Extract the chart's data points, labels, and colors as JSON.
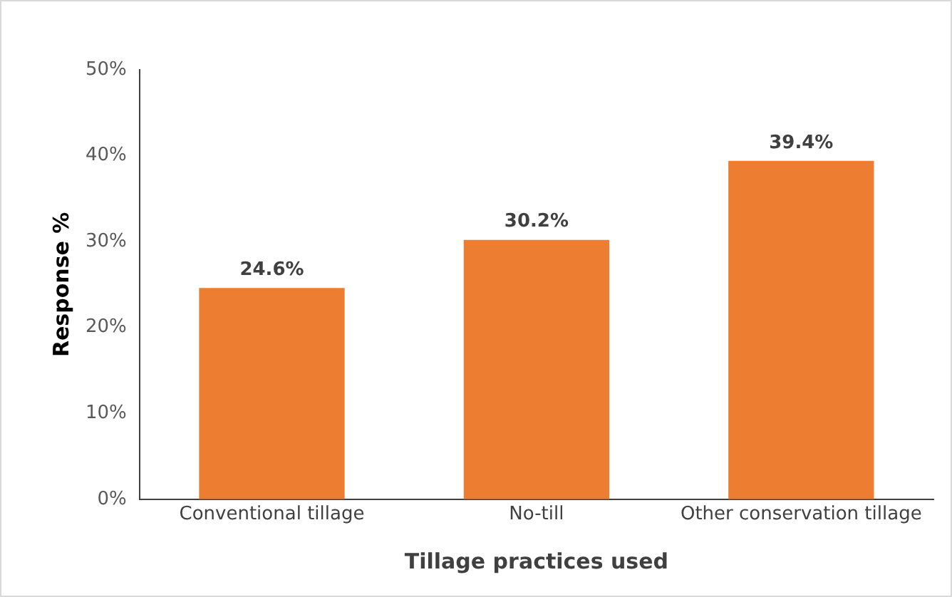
{
  "chart_data": {
    "type": "bar",
    "xlabel": "Tillage practices used",
    "ylabel": "Response %",
    "categories": [
      "Conventional tillage",
      "No-till",
      "Other conservation tillage"
    ],
    "values": [
      24.6,
      30.2,
      39.4
    ],
    "value_labels": [
      "24.6%",
      "30.2%",
      "39.4%"
    ],
    "color": "#ed7d31",
    "ylim": [
      0,
      50
    ],
    "yticks": [
      {
        "value": 0,
        "label": "0%"
      },
      {
        "value": 10,
        "label": "10%"
      },
      {
        "value": 20,
        "label": "20%"
      },
      {
        "value": 30,
        "label": "30%"
      },
      {
        "value": 40,
        "label": "40%"
      },
      {
        "value": 50,
        "label": "50%"
      }
    ],
    "grid": false,
    "legend": false
  }
}
